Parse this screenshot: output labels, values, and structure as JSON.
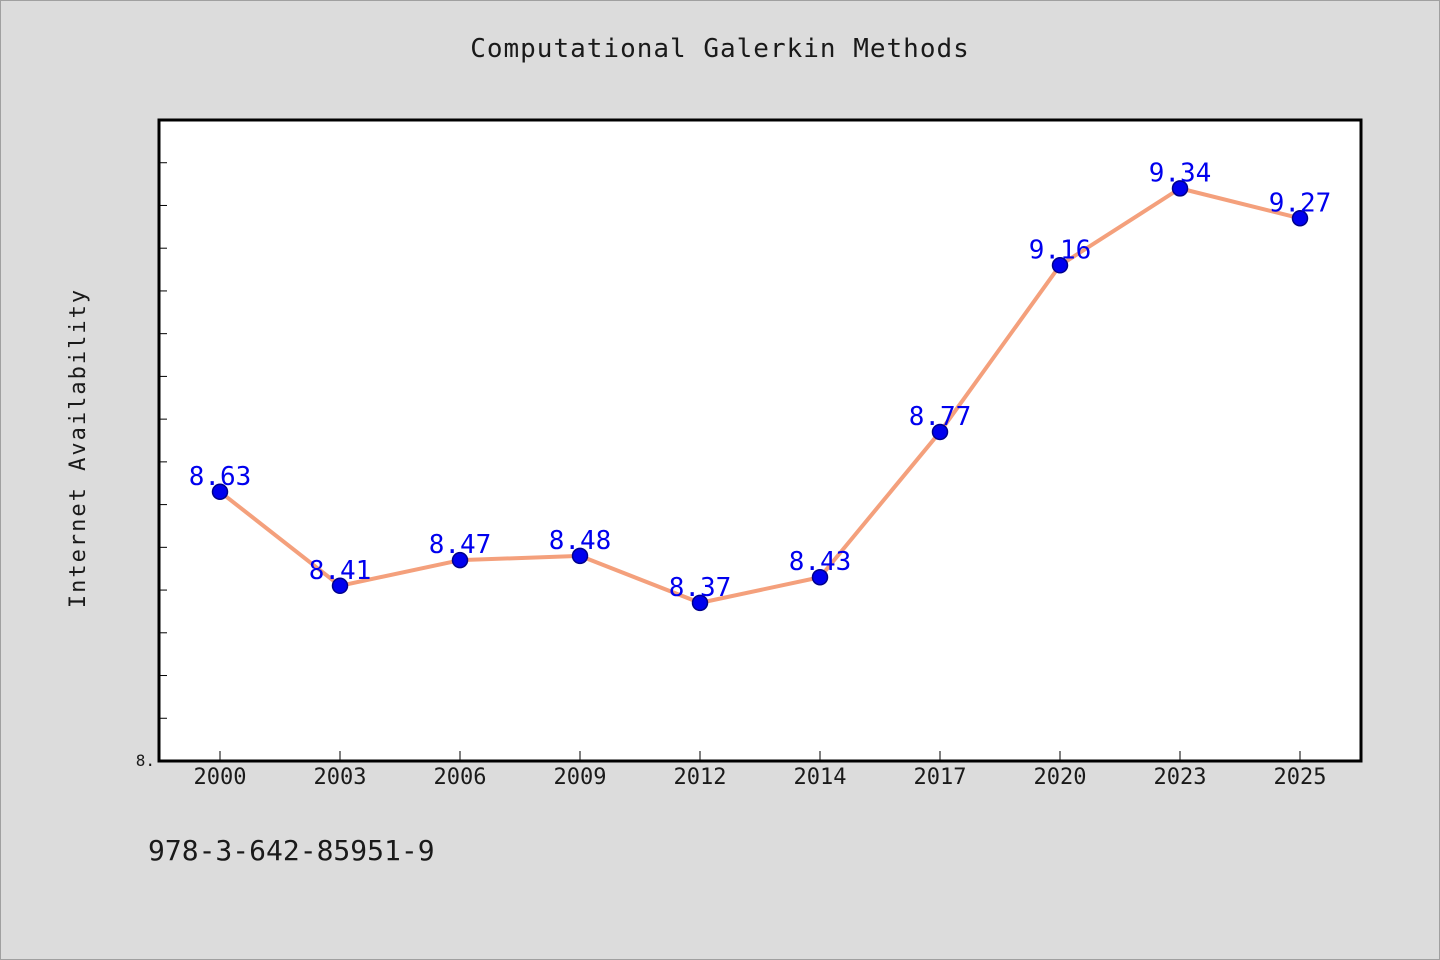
{
  "chart_data": {
    "type": "line",
    "title": "Computational Galerkin Methods",
    "ylabel": "Internet Availability",
    "xlabel": "",
    "categories": [
      "2000",
      "2003",
      "2006",
      "2009",
      "2012",
      "2014",
      "2017",
      "2020",
      "2023",
      "2025"
    ],
    "series": [
      {
        "values": [
          8.63,
          8.41,
          8.47,
          8.48,
          8.37,
          8.43,
          8.77,
          9.16,
          9.34,
          9.27
        ],
        "labels": [
          "8.63",
          "8.41",
          "8.47",
          "8.48",
          "8.37",
          "8.43",
          "8.77",
          "9.16",
          "9.34",
          "9.27"
        ]
      }
    ],
    "ylim": [
      8.0,
      9.5
    ],
    "y_tick_labels": [
      "8."
    ],
    "grid": false,
    "legend": "none",
    "colors": {
      "line": "#f4a07c",
      "marker_fill": "#0000ee",
      "marker_stroke": "#00008b",
      "data_label": "#0000ee",
      "background": "#dcdcdc",
      "plot_background": "#ffffff"
    }
  },
  "footer": {
    "code": "978-3-642-85951-9"
  }
}
